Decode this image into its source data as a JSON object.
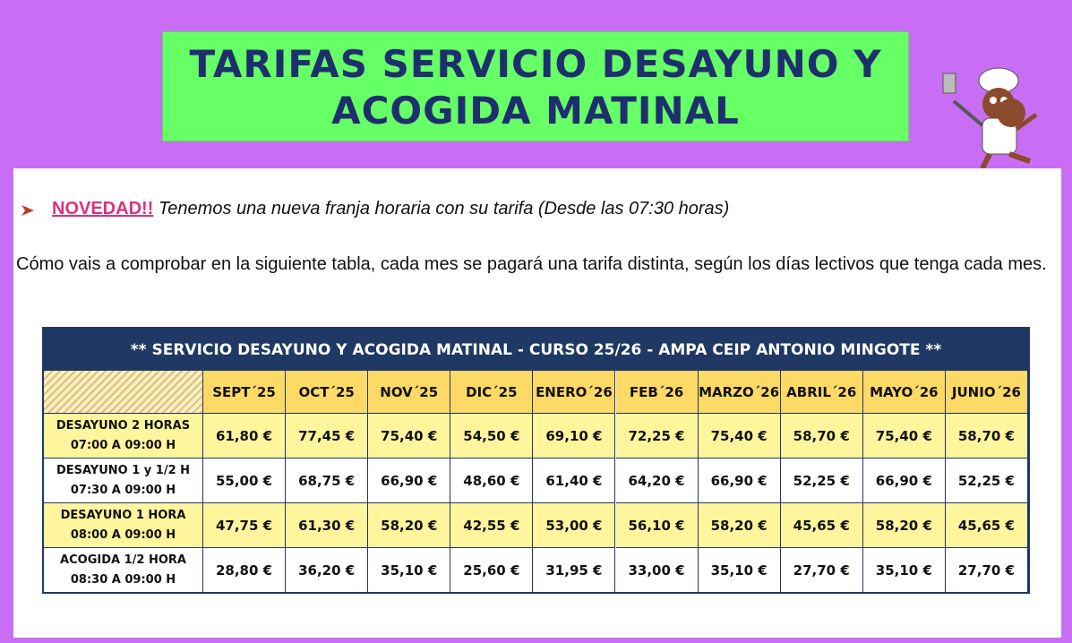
{
  "header": {
    "title_lines": [
      "TARIFAS SERVICIO DESAYUNO Y",
      "ACOGIDA MATINAL"
    ]
  },
  "notice": {
    "highlight": "NOVEDAD!!",
    "text": "Tenemos una nueva franja horaria con su tarifa (Desde las 07:30 horas)"
  },
  "paragraph": "Cómo vais a comprobar en la siguiente tabla, cada mes se pagará una tarifa distinta, según los días lectivos que tenga cada mes.",
  "table": {
    "title": "** SERVICIO DESAYUNO Y ACOGIDA MATINAL - CURSO 25/26 -  AMPA CEIP ANTONIO MINGOTE **",
    "months": [
      "SEPT´25",
      "OCT´25",
      "NOV´25",
      "DIC´25",
      "ENERO´26",
      "FEB´26",
      "MARZO´26",
      "ABRIL´26",
      "MAYO´26",
      "JUNIO´26"
    ],
    "rows": [
      {
        "label": [
          "DESAYUNO 2 HORAS",
          "07:00 A 09:00 H"
        ],
        "prices": [
          "61,80 €",
          "77,45 €",
          "75,40 €",
          "54,50 €",
          "69,10 €",
          "72,25 €",
          "75,40 €",
          "58,70 €",
          "75,40 €",
          "58,70 €"
        ]
      },
      {
        "label": [
          "DESAYUNO 1 y 1/2 H",
          "07:30 A 09:00 H"
        ],
        "prices": [
          "55,00 €",
          "68,75 €",
          "66,90 €",
          "48,60 €",
          "61,40 €",
          "64,20 €",
          "66,90 €",
          "52,25 €",
          "66,90 €",
          "52,25 €"
        ]
      },
      {
        "label": [
          "DESAYUNO 1 HORA",
          "08:00 A 09:00 H"
        ],
        "prices": [
          "47,75 €",
          "61,30 €",
          "58,20 €",
          "42,55 €",
          "53,00 €",
          "56,10 €",
          "58,20 €",
          "45,65 €",
          "58,20 €",
          "45,65 €"
        ]
      },
      {
        "label": [
          "ACOGIDA 1/2 HORA",
          "08:30 A 09:00 H"
        ],
        "prices": [
          "28,80 €",
          "36,20 €",
          "35,10 €",
          "25,60 €",
          "31,95 €",
          "33,00 €",
          "35,10 €",
          "27,70 €",
          "35,10 €",
          "27,70 €"
        ]
      }
    ]
  }
}
